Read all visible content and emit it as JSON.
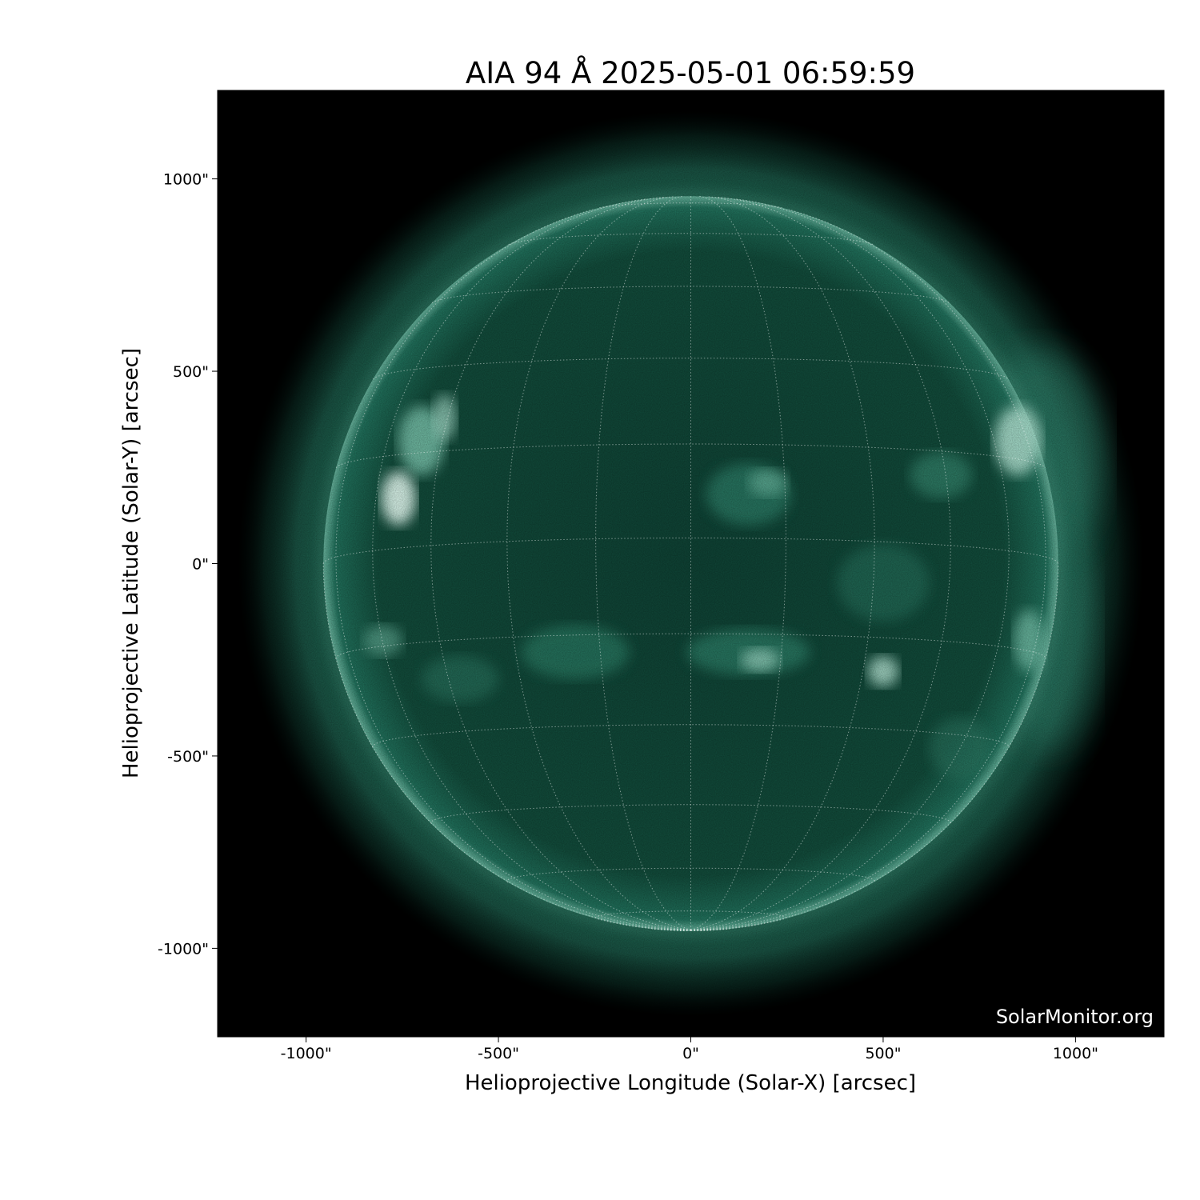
{
  "chart_data": {
    "type": "image",
    "title": "AIA 94 Å 2025-05-01 06:59:59",
    "xlabel": "Helioprojective Longitude (Solar-X) [arcsec]",
    "ylabel": "Helioprojective Latitude (Solar-Y) [arcsec]",
    "xlim": [
      -1230,
      1230
    ],
    "ylim": [
      -1230,
      1230
    ],
    "xticks": [
      {
        "value": -1000,
        "label": "-1000\""
      },
      {
        "value": -500,
        "label": "-500\""
      },
      {
        "value": 0,
        "label": "0\""
      },
      {
        "value": 500,
        "label": "500\""
      },
      {
        "value": 1000,
        "label": "1000\""
      }
    ],
    "yticks": [
      {
        "value": 1000,
        "label": "1000\""
      },
      {
        "value": 500,
        "label": "500\""
      },
      {
        "value": 0,
        "label": "0\""
      },
      {
        "value": -500,
        "label": "-500\""
      },
      {
        "value": -1000,
        "label": "-1000\""
      }
    ],
    "solar_radius_arcsec": 955,
    "grid_spacing_deg": 15,
    "grid": true,
    "colormap": {
      "background": "#000000",
      "disk": "#0d3f31",
      "mid": "#1f6b57",
      "bright": "#cfeee4"
    },
    "watermark": "SolarMonitor.org"
  }
}
